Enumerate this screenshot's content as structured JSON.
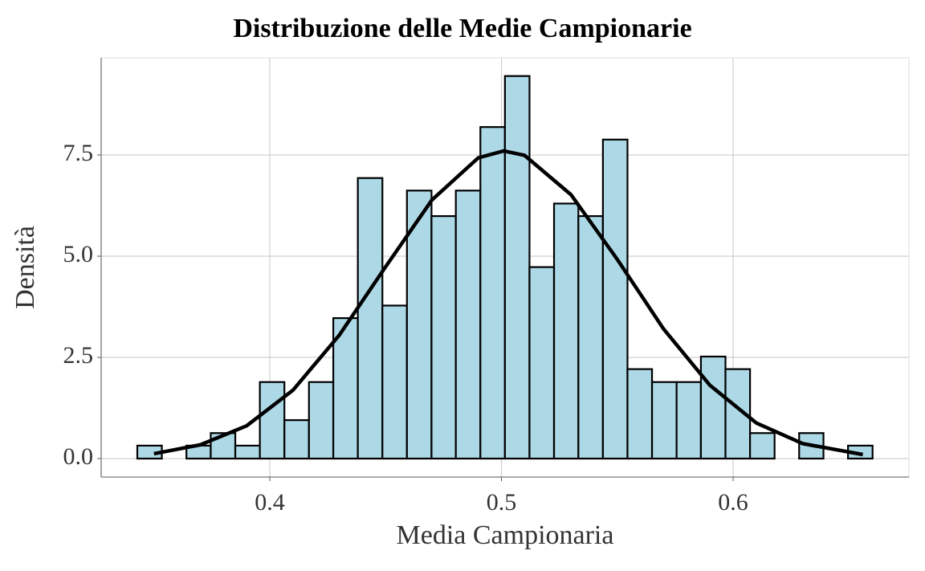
{
  "chart_data": {
    "type": "histogram",
    "title": "Distribuzione delle Medie Campionarie",
    "x_label": "Media Campionaria",
    "y_label": "Densità",
    "bins": [
      0.3428,
      0.3534,
      0.364,
      0.3745,
      0.3851,
      0.3957,
      0.4063,
      0.4169,
      0.4274,
      0.438,
      0.4486,
      0.4592,
      0.4698,
      0.4803,
      0.4909,
      0.5015,
      0.5121,
      0.5227,
      0.5332,
      0.5438,
      0.5544,
      0.565,
      0.5756,
      0.5861,
      0.5967,
      0.6073,
      0.6179,
      0.6285,
      0.639,
      0.6496,
      0.6602
    ],
    "values": [
      0.32,
      0,
      0.32,
      0.63,
      0.32,
      1.89,
      0.95,
      1.89,
      3.47,
      6.93,
      3.78,
      6.62,
      5.99,
      6.62,
      8.19,
      9.45,
      4.73,
      6.3,
      5.99,
      7.88,
      2.21,
      1.89,
      1.89,
      2.52,
      2.21,
      0.63,
      0,
      0.63,
      0,
      0.32
    ],
    "color": "#add8e6",
    "edge_color": "#000000",
    "curve": {
      "x": [
        0.35,
        0.37,
        0.39,
        0.41,
        0.43,
        0.45,
        0.47,
        0.49,
        0.501,
        0.51,
        0.53,
        0.55,
        0.57,
        0.59,
        0.61,
        0.63,
        0.656
      ],
      "values": [
        0.12,
        0.34,
        0.81,
        1.69,
        3.05,
        4.74,
        6.39,
        7.43,
        7.6,
        7.49,
        6.52,
        4.92,
        3.2,
        1.81,
        0.88,
        0.37,
        0.1
      ],
      "color": "#000000"
    },
    "xlim": [
      0.3272,
      0.6759
    ],
    "ylim": [
      -0.456,
      9.9
    ],
    "xticks": [
      0.4,
      0.5,
      0.6
    ],
    "yticks": [
      {
        "value": 0,
        "label": "0.0"
      },
      2.5,
      {
        "value": 5,
        "label": "5.0"
      },
      7.5
    ],
    "grid": true
  }
}
